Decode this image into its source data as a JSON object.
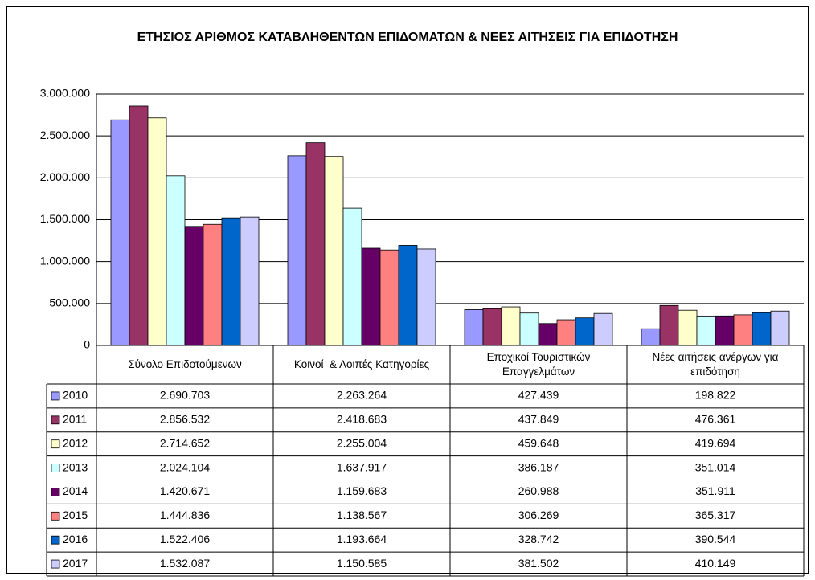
{
  "chart_data": {
    "type": "bar",
    "title": "ΕΤΗΣΙΟΣ ΑΡΙΘΜΟΣ ΚΑΤΑΒΛΗΘΕΝΤΩΝ ΕΠΙΔΟΜΑΤΩΝ & ΝΕΕΣ ΑΙΤΗΣΕΙΣ ΓΙΑ ΕΠΙΔΟΤΗΣΗ",
    "categories": [
      "Σύνολο Επιδοτούμενων",
      "Κοινοί  & Λοιπές Κατηγορίες",
      "Εποχικοί Τουριστικών Επαγγελμάτων",
      "Νέες αιτήσεις ανέργων για επιδότηση"
    ],
    "ylim": [
      0,
      3000000
    ],
    "yticks": [
      0,
      {
        "value": 500000,
        "label": "500.000"
      },
      {
        "value": 1000000,
        "label": "1.000.000"
      },
      {
        "value": 1500000,
        "label": "1.500.000"
      },
      {
        "value": 2000000,
        "label": "2.000.000"
      },
      {
        "value": 2500000,
        "label": "2.500.000"
      },
      {
        "value": 3000000,
        "label": "3.000.000"
      }
    ],
    "grid": true,
    "series": [
      {
        "name": "2010",
        "color": "#9999ff",
        "values": [
          2690703,
          2263264,
          427439,
          198822
        ],
        "value_labels": [
          "2.690.703",
          "2.263.264",
          "427.439",
          "198.822"
        ]
      },
      {
        "name": "2011",
        "color": "#993366",
        "values": [
          2856532,
          2418683,
          437849,
          476361
        ],
        "value_labels": [
          "2.856.532",
          "2.418.683",
          "437.849",
          "476.361"
        ]
      },
      {
        "name": "2012",
        "color": "#ffffcc",
        "values": [
          2714652,
          2255004,
          459648,
          419694
        ],
        "value_labels": [
          "2.714.652",
          "2.255.004",
          "459.648",
          "419.694"
        ]
      },
      {
        "name": "2013",
        "color": "#ccffff",
        "values": [
          2024104,
          1637917,
          386187,
          351014
        ],
        "value_labels": [
          "2.024.104",
          "1.637.917",
          "386.187",
          "351.014"
        ]
      },
      {
        "name": "2014",
        "color": "#660066",
        "values": [
          1420671,
          1159683,
          260988,
          351911
        ],
        "value_labels": [
          "1.420.671",
          "1.159.683",
          "260.988",
          "351.911"
        ]
      },
      {
        "name": "2015",
        "color": "#ff8080",
        "values": [
          1444836,
          1138567,
          306269,
          365317
        ],
        "value_labels": [
          "1.444.836",
          "1.138.567",
          "306.269",
          "365.317"
        ]
      },
      {
        "name": "2016",
        "color": "#0066cc",
        "values": [
          1522406,
          1193664,
          328742,
          390544
        ],
        "value_labels": [
          "1.522.406",
          "1.193.664",
          "328.742",
          "390.544"
        ]
      },
      {
        "name": "2017",
        "color": "#ccccff",
        "values": [
          1532087,
          1150585,
          381502,
          410149
        ],
        "value_labels": [
          "1.532.087",
          "1.150.585",
          "381.502",
          "410.149"
        ]
      }
    ]
  }
}
